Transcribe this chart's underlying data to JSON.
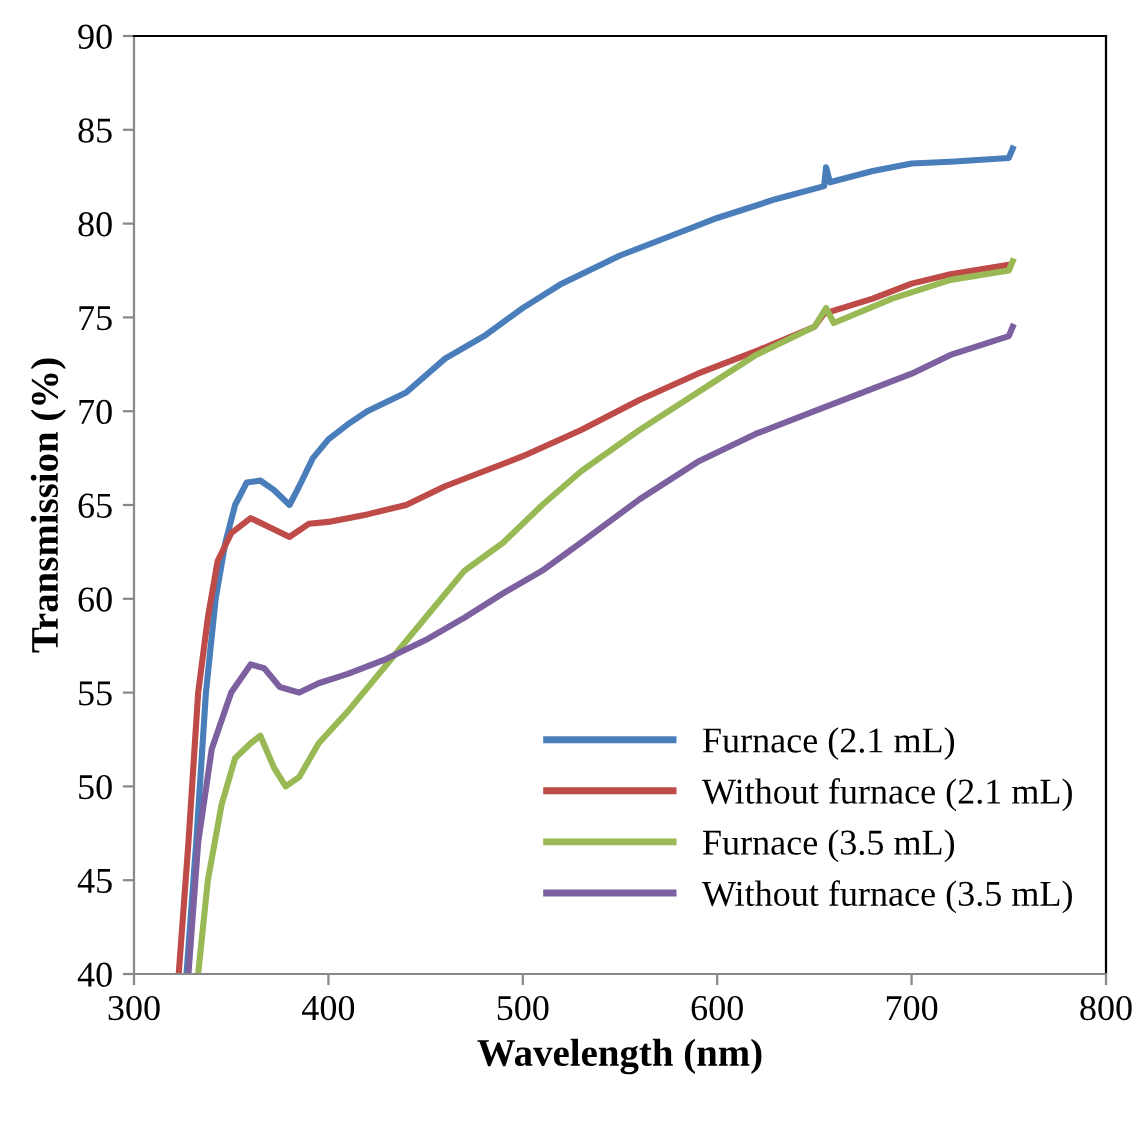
{
  "chart_data": {
    "type": "line",
    "xlabel": "Wavelength (nm)",
    "ylabel": "Transmission (%)",
    "xlim": [
      300,
      800
    ],
    "xticks": [
      300,
      400,
      500,
      600,
      700,
      800
    ],
    "ylim": [
      40,
      90
    ],
    "yticks": [
      40,
      45,
      50,
      55,
      60,
      65,
      70,
      75,
      80,
      85,
      90
    ],
    "grid": false,
    "legend": "bottom right",
    "marker": "none",
    "line_style": "solid",
    "series": [
      {
        "name": "Furnace (2.1 mL)",
        "color": "#4a7ebb",
        "x": [
          327,
          332,
          337,
          342,
          347,
          352,
          358,
          365,
          372,
          380,
          385,
          392,
          400,
          410,
          420,
          440,
          460,
          480,
          500,
          520,
          550,
          580,
          600,
          630,
          655,
          656,
          658,
          680,
          700,
          720,
          750,
          752
        ],
        "values": [
          40,
          47,
          55,
          60,
          63,
          65,
          66.2,
          66.3,
          65.8,
          65,
          66,
          67.5,
          68.5,
          69.3,
          70,
          71,
          72.8,
          74,
          75.5,
          76.8,
          78.3,
          79.5,
          80.3,
          81.3,
          82,
          83,
          82.2,
          82.8,
          83.2,
          83.3,
          83.5,
          84
        ]
      },
      {
        "name": "Without furnace (2.1 mL)",
        "color": "#be4b48",
        "x": [
          323,
          328,
          333,
          338,
          343,
          350,
          360,
          370,
          380,
          390,
          400,
          420,
          440,
          460,
          480,
          500,
          530,
          560,
          590,
          620,
          650,
          655,
          680,
          700,
          720,
          750
        ],
        "values": [
          40,
          47,
          55,
          59,
          62,
          63.5,
          64.3,
          63.8,
          63.3,
          64,
          64.1,
          64.5,
          65,
          66,
          66.8,
          67.6,
          69,
          70.6,
          72,
          73.2,
          74.5,
          75.2,
          76,
          76.8,
          77.3,
          77.8
        ]
      },
      {
        "name": "Furnace (3.5 mL)",
        "color": "#98b954",
        "x": [
          333,
          338,
          345,
          352,
          360,
          365,
          372,
          378,
          385,
          395,
          410,
          430,
          450,
          470,
          490,
          510,
          530,
          560,
          590,
          620,
          650,
          656,
          660,
          690,
          720,
          750,
          752
        ],
        "values": [
          40,
          45,
          49,
          51.5,
          52.3,
          52.7,
          51,
          50,
          50.5,
          52.3,
          54,
          56.5,
          59,
          61.5,
          63,
          65,
          66.8,
          69,
          71,
          73,
          74.5,
          75.5,
          74.7,
          76,
          77,
          77.5,
          78
        ]
      },
      {
        "name": "Without furnace (3.5 mL)",
        "color": "#7d60a0",
        "x": [
          328,
          333,
          340,
          350,
          360,
          367,
          375,
          385,
          395,
          410,
          430,
          450,
          470,
          490,
          510,
          530,
          560,
          590,
          620,
          650,
          680,
          700,
          720,
          750,
          752
        ],
        "values": [
          40,
          47,
          52,
          55,
          56.5,
          56.3,
          55.3,
          55,
          55.5,
          56,
          56.8,
          57.8,
          59,
          60.3,
          61.5,
          63,
          65.3,
          67.3,
          68.8,
          70,
          71.2,
          72,
          73,
          74,
          74.5
        ]
      }
    ]
  }
}
